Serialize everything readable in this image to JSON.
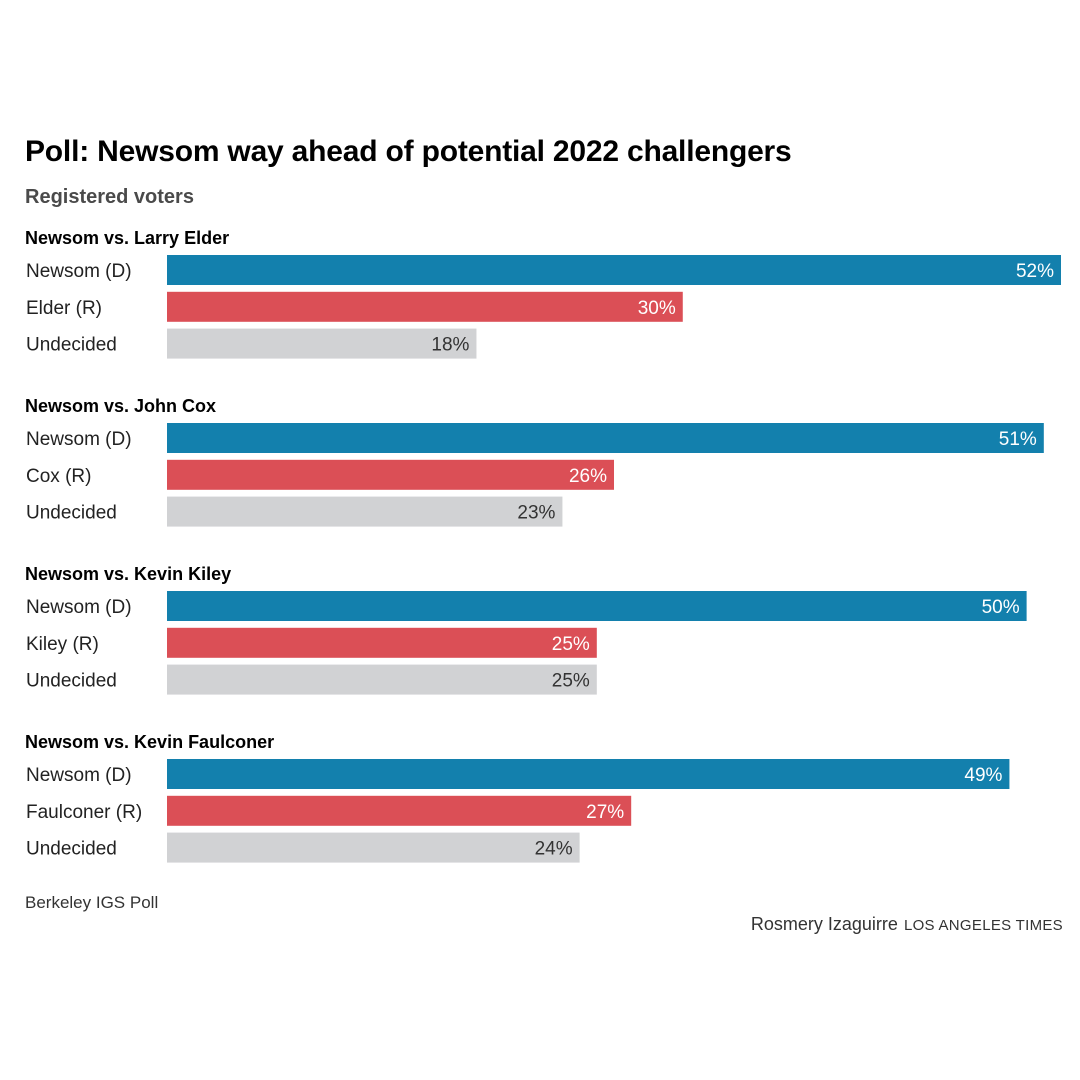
{
  "chart_data": {
    "type": "bar",
    "orientation": "horizontal",
    "title": "Poll: Newsom way ahead of potential 2022 challengers",
    "subtitle": "Registered voters",
    "unit": "%",
    "xlim": [
      0,
      52
    ],
    "grid": false,
    "legend": "none",
    "colors": {
      "democrat": "#1380ad",
      "republican": "#db4f56",
      "undecided": "#d1d2d4"
    },
    "groups": [
      {
        "title": "Newsom vs. Larry Elder",
        "bars": [
          {
            "label": "Newsom (D)",
            "value": 52,
            "value_label": "52%",
            "party": "democrat"
          },
          {
            "label": "Elder (R)",
            "value": 30,
            "value_label": "30%",
            "party": "republican"
          },
          {
            "label": "Undecided",
            "value": 18,
            "value_label": "18%",
            "party": "undecided"
          }
        ]
      },
      {
        "title": "Newsom vs. John Cox",
        "bars": [
          {
            "label": "Newsom (D)",
            "value": 51,
            "value_label": "51%",
            "party": "democrat"
          },
          {
            "label": "Cox (R)",
            "value": 26,
            "value_label": "26%",
            "party": "republican"
          },
          {
            "label": "Undecided",
            "value": 23,
            "value_label": "23%",
            "party": "undecided"
          }
        ]
      },
      {
        "title": "Newsom vs. Kevin Kiley",
        "bars": [
          {
            "label": "Newsom (D)",
            "value": 50,
            "value_label": "50%",
            "party": "democrat"
          },
          {
            "label": "Kiley (R)",
            "value": 25,
            "value_label": "25%",
            "party": "republican"
          },
          {
            "label": "Undecided",
            "value": 25,
            "value_label": "25%",
            "party": "undecided"
          }
        ]
      },
      {
        "title": "Newsom vs. Kevin Faulconer",
        "bars": [
          {
            "label": "Newsom (D)",
            "value": 49,
            "value_label": "49%",
            "party": "democrat"
          },
          {
            "label": "Faulconer (R)",
            "value": 27,
            "value_label": "27%",
            "party": "republican"
          },
          {
            "label": "Undecided",
            "value": 24,
            "value_label": "24%",
            "party": "undecided"
          }
        ]
      }
    ]
  },
  "footer": {
    "source": "Berkeley IGS Poll",
    "credit_name": "Rosmery Izaguirre",
    "credit_org": "LOS ANGELES TIMES"
  }
}
